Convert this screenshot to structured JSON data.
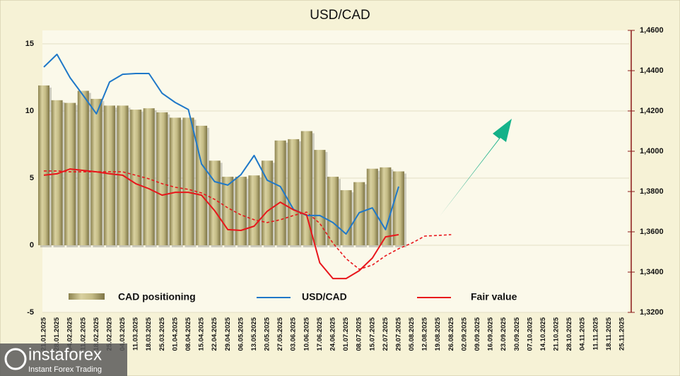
{
  "chart_data": {
    "type": "bar-line",
    "title": "USD/CAD",
    "categories": [
      "21.01.2025",
      "28.01.2025",
      "04.02.2025",
      "11.02.2025",
      "18.02.2025",
      "25.02.2025",
      "04.03.2025",
      "11.03.2025",
      "18.03.2025",
      "25.03.2025",
      "01.04.2025",
      "08.04.2025",
      "15.04.2025",
      "22.04.2025",
      "29.04.2025",
      "06.05.2025",
      "13.05.2025",
      "20.05.2025",
      "27.05.2025",
      "03.06.2025",
      "10.06.2025",
      "17.06.2025",
      "24.06.2025",
      "01.07.2025",
      "08.07.2025",
      "15.07.2025",
      "22.07.2025",
      "29.07.2025",
      "05.08.2025",
      "12.08.2025",
      "19.08.2025",
      "26.08.2025",
      "02.09.2025",
      "09.09.2025",
      "16.09.2025",
      "23.09.2025",
      "30.09.2025",
      "07.10.2025",
      "14.10.2025",
      "21.10.2025",
      "28.10.2025",
      "04.11.2025",
      "11.11.2025",
      "18.11.2025",
      "25.11.2025"
    ],
    "series": [
      {
        "name": "CAD positioning",
        "type": "bar",
        "axis": "y",
        "color": "#b3a973",
        "values": [
          11.9,
          10.8,
          10.6,
          11.5,
          10.9,
          10.4,
          10.4,
          10.1,
          10.2,
          9.9,
          9.5,
          9.5,
          8.9,
          6.3,
          5.1,
          5.1,
          5.2,
          6.3,
          7.8,
          7.9,
          8.5,
          7.1,
          5.1,
          4.1,
          4.7,
          5.7,
          5.8,
          5.5,
          null,
          null,
          null,
          null,
          null,
          null,
          null,
          null,
          null,
          null,
          null,
          null,
          null,
          null,
          null,
          null,
          null
        ]
      },
      {
        "name": "USD/CAD",
        "type": "line",
        "axis": "y2",
        "color": "#1f78c8",
        "values": [
          1.4418,
          1.4481,
          1.4365,
          1.4277,
          1.4186,
          1.4344,
          1.4382,
          1.4386,
          1.4386,
          1.4288,
          1.4242,
          1.4207,
          1.3937,
          1.3849,
          1.3832,
          1.3884,
          1.3979,
          1.3856,
          1.3825,
          1.3712,
          1.3681,
          1.3681,
          1.3646,
          1.3589,
          1.3695,
          1.3719,
          1.3611,
          1.3825,
          null,
          null,
          null,
          null,
          null,
          null,
          null,
          null,
          null,
          null,
          null,
          null,
          null,
          null,
          null,
          null,
          null
        ]
      },
      {
        "name": "Fair value",
        "type": "line",
        "axis": "y2",
        "color": "#e8161b",
        "values": [
          1.3881,
          1.3888,
          1.3912,
          1.3905,
          1.3898,
          1.3888,
          1.3881,
          1.3839,
          1.3814,
          1.3782,
          1.3796,
          1.3796,
          1.3782,
          1.3705,
          1.3611,
          1.3607,
          1.3628,
          1.3702,
          1.3747,
          1.3709,
          1.3684,
          1.3446,
          1.3368,
          1.3368,
          1.3407,
          1.347,
          1.3575,
          1.3586,
          null,
          null,
          null,
          null,
          null,
          null,
          null,
          null,
          null,
          null,
          null,
          null,
          null,
          null,
          null,
          null,
          null
        ]
      }
    ],
    "fair_value_trend": {
      "type": "line",
      "axis": "y2",
      "color": "#e8161b",
      "dashed": true,
      "values": [
        1.3902,
        1.3902,
        1.3898,
        1.3898,
        1.3898,
        1.3898,
        1.3898,
        1.3881,
        1.3863,
        1.3839,
        1.3821,
        1.3811,
        1.3793,
        1.3761,
        1.3719,
        1.3684,
        1.366,
        1.3646,
        1.366,
        1.3681,
        1.3698,
        1.3642,
        1.3544,
        1.3467,
        1.3414,
        1.3435,
        1.3481,
        1.3516,
        1.3544,
        1.3579,
        1.3582,
        1.3586,
        null,
        null,
        null,
        null,
        null,
        null,
        null,
        null,
        null,
        null,
        null,
        null,
        null
      ]
    },
    "ylim": [
      -5,
      16
    ],
    "yticks": [
      -5,
      0,
      5,
      10,
      15
    ],
    "y2lim": [
      1.32,
      1.46
    ],
    "y2ticks": [
      {
        "value": 1.32,
        "label": "1,3200"
      },
      {
        "value": 1.34,
        "label": "1,3400"
      },
      {
        "value": 1.36,
        "label": "1,3600"
      },
      {
        "value": 1.38,
        "label": "1,3800"
      },
      {
        "value": 1.4,
        "label": "1,4000"
      },
      {
        "value": 1.42,
        "label": "1,4200"
      },
      {
        "value": 1.44,
        "label": "1,4400"
      },
      {
        "value": 1.46,
        "label": "1,4600"
      }
    ],
    "grid": true,
    "legend": "bottom"
  },
  "watermark": {
    "brand": "instaforex",
    "tagline": "Instant Forex Trading"
  }
}
